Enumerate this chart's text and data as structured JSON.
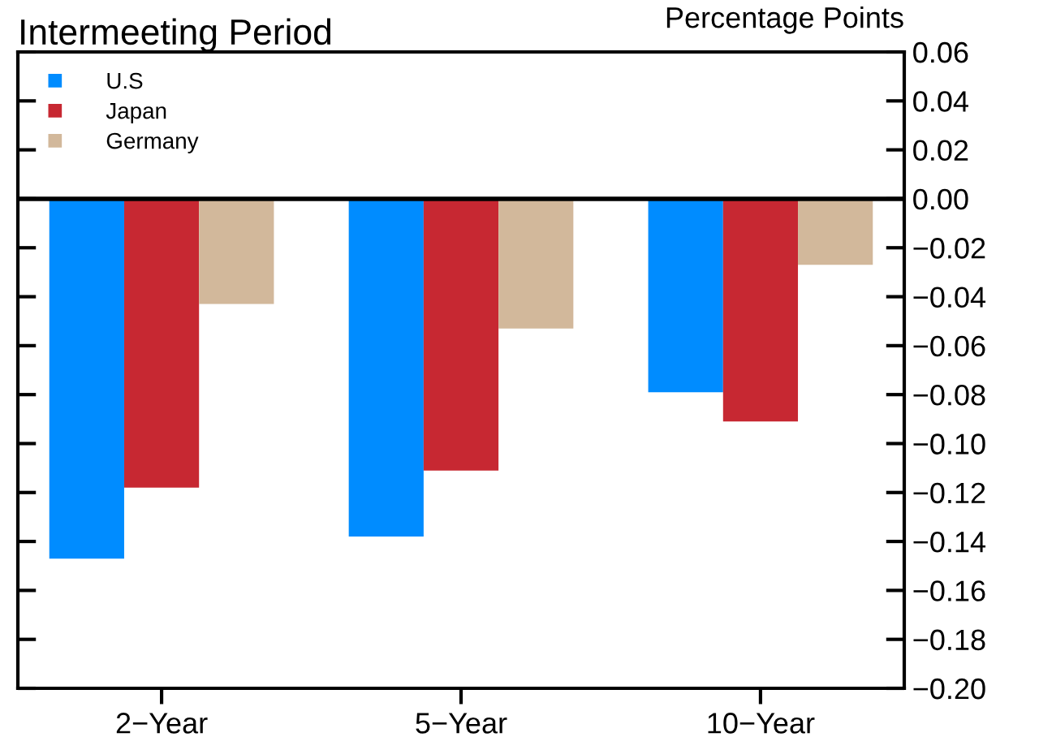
{
  "chart_data": {
    "type": "bar",
    "title": "Intermeeting Period",
    "ylabel": "Percentage Points",
    "categories": [
      "2−Year",
      "5−Year",
      "10−Year"
    ],
    "series": [
      {
        "name": "U.S",
        "color": "#008cff",
        "values": [
          -0.147,
          -0.138,
          -0.079
        ]
      },
      {
        "name": "Japan",
        "color": "#c72832",
        "values": [
          -0.118,
          -0.111,
          -0.091
        ]
      },
      {
        "name": "Germany",
        "color": "#d2b89b",
        "values": [
          -0.043,
          -0.053,
          -0.027
        ]
      }
    ],
    "ylim": [
      -0.2,
      0.06
    ],
    "yticks": [
      {
        "value": 0.06,
        "label": "0.06"
      },
      {
        "value": 0.04,
        "label": "0.04"
      },
      {
        "value": 0.02,
        "label": "0.02"
      },
      {
        "value": 0,
        "label": "0.00"
      },
      {
        "value": -0.02,
        "label": "−0.02"
      },
      {
        "value": -0.04,
        "label": "−0.04"
      },
      {
        "value": -0.06,
        "label": "−0.06"
      },
      {
        "value": -0.08,
        "label": "−0.08"
      },
      {
        "value": -0.1,
        "label": "−0.10"
      },
      {
        "value": -0.12,
        "label": "−0.12"
      },
      {
        "value": -0.14,
        "label": "−0.14"
      },
      {
        "value": -0.16,
        "label": "−0.16"
      },
      {
        "value": -0.18,
        "label": "−0.18"
      },
      {
        "value": -0.2,
        "label": "−0.20"
      }
    ],
    "ref_lines": [
      {
        "axis": "y",
        "value": 0,
        "color": "#000000"
      }
    ],
    "grid": false,
    "legend": "top left"
  }
}
